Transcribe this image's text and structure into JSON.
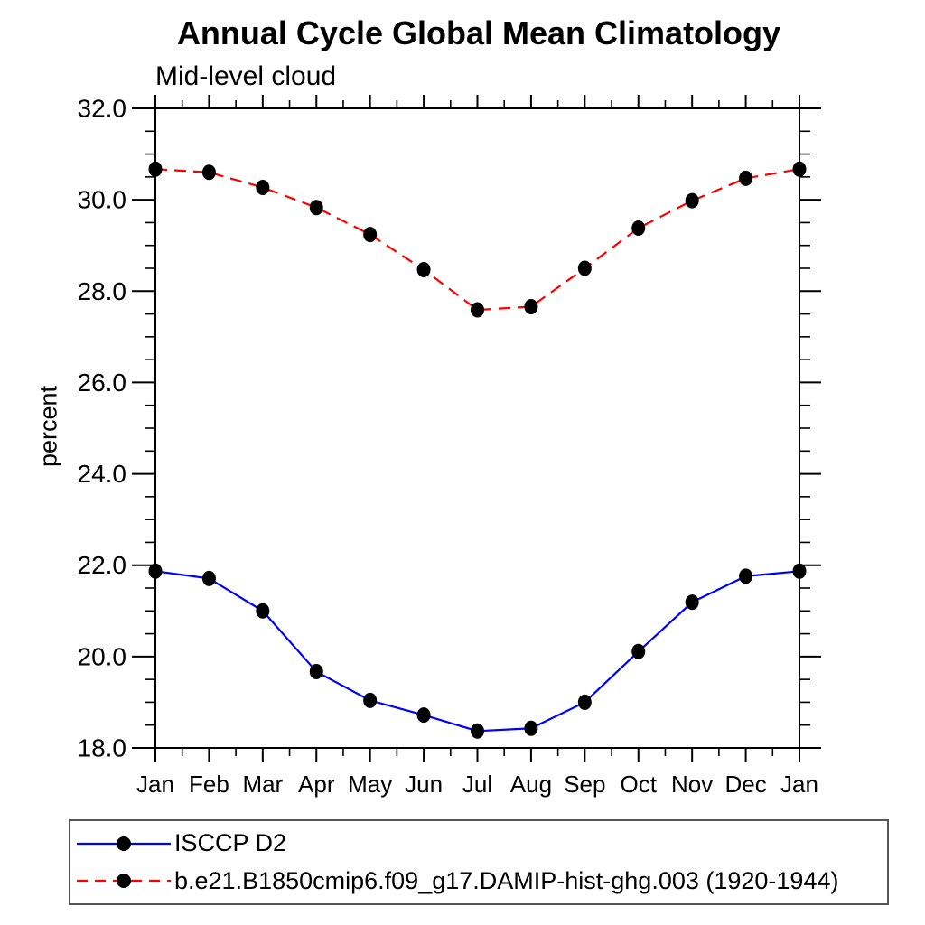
{
  "title": "Annual Cycle Global Mean Climatology",
  "subtitle": "Mid-level cloud",
  "ylabel": "percent",
  "chart_data": {
    "type": "line",
    "categories": [
      "Jan",
      "Feb",
      "Mar",
      "Apr",
      "May",
      "Jun",
      "Jul",
      "Aug",
      "Sep",
      "Oct",
      "Nov",
      "Dec",
      "Jan"
    ],
    "series": [
      {
        "name": "ISCCP D2",
        "color": "#0000ff",
        "line_style": "solid",
        "marker": "filled-circle",
        "marker_color": "#000000",
        "values": [
          21.87,
          21.71,
          21.0,
          19.67,
          19.04,
          18.72,
          18.37,
          18.43,
          19.0,
          20.11,
          21.19,
          21.76,
          21.87
        ]
      },
      {
        "name": "b.e21.B1850cmip6.f09_g17.DAMIP-hist-ghg.003 (1920-1944)",
        "color": "#ff0000",
        "line_style": "dashed",
        "marker": "filled-circle",
        "marker_color": "#000000",
        "values": [
          30.67,
          30.6,
          30.27,
          29.83,
          29.24,
          28.47,
          27.59,
          27.66,
          28.5,
          29.38,
          29.98,
          30.47,
          30.67
        ]
      }
    ],
    "ylim": [
      18.0,
      32.0
    ],
    "ytick_major": [
      18,
      20,
      22,
      24,
      26,
      28,
      30,
      32
    ],
    "ytick_labels": [
      "18.0",
      "20.0",
      "22.0",
      "24.0",
      "26.0",
      "28.0",
      "30.0",
      "32.0"
    ],
    "ytick_minor_step": 0.5,
    "xtick_minor_step": 0.5,
    "grid": false,
    "legend_position": "bottom",
    "frame_color": "#000000",
    "tick_label_color": "#000000"
  }
}
